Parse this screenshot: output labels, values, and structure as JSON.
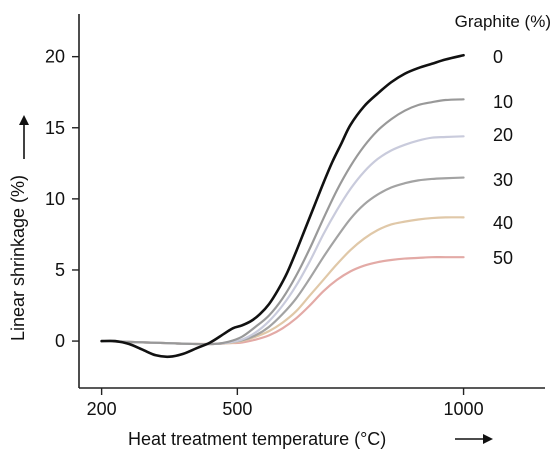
{
  "chart_data": {
    "type": "line",
    "xlabel": "Heat treatment temperature (°C)",
    "ylabel": "Linear shrinkage (%)",
    "xlim": [
      150,
      1180
    ],
    "ylim": [
      -3.3,
      23
    ],
    "xticks": [
      200,
      500,
      1000
    ],
    "yticks": [
      0,
      5,
      10,
      15,
      20
    ],
    "grid": false,
    "legend_title": "Graphite (%)",
    "legend_position": "right, next to line ends",
    "series": [
      {
        "name": "0",
        "color": "#111111",
        "x": [
          200,
          230,
          260,
          290,
          320,
          350,
          380,
          410,
          440,
          470,
          490,
          510,
          530,
          550,
          570,
          590,
          610,
          630,
          650,
          670,
          690,
          710,
          730,
          750,
          780,
          810,
          840,
          870,
          900,
          930,
          960,
          1000
        ],
        "y": [
          0,
          0,
          -0.2,
          -0.6,
          -1.0,
          -1.1,
          -0.9,
          -0.5,
          -0.1,
          0.5,
          0.9,
          1.1,
          1.4,
          1.9,
          2.6,
          3.6,
          4.8,
          6.3,
          7.9,
          9.5,
          11.1,
          12.6,
          13.9,
          15.2,
          16.5,
          17.4,
          18.2,
          18.8,
          19.2,
          19.5,
          19.8,
          20.1
        ]
      },
      {
        "name": "10",
        "color": "#999999",
        "x": [
          200,
          250,
          300,
          350,
          400,
          450,
          480,
          510,
          540,
          570,
          600,
          630,
          660,
          690,
          720,
          750,
          780,
          810,
          840,
          870,
          900,
          930,
          960,
          1000
        ],
        "y": [
          0,
          -0.05,
          -0.1,
          -0.15,
          -0.2,
          -0.2,
          -0.05,
          0.3,
          1.0,
          1.8,
          3.0,
          4.6,
          6.5,
          8.6,
          10.6,
          12.3,
          13.7,
          14.8,
          15.6,
          16.2,
          16.6,
          16.8,
          16.95,
          17.0
        ]
      },
      {
        "name": "20",
        "color": "#c9cbdc",
        "x": [
          200,
          250,
          300,
          350,
          400,
          450,
          480,
          510,
          540,
          570,
          600,
          630,
          660,
          690,
          720,
          750,
          780,
          810,
          840,
          870,
          900,
          930,
          960,
          1000
        ],
        "y": [
          0,
          -0.05,
          -0.1,
          -0.15,
          -0.2,
          -0.2,
          -0.1,
          0.1,
          0.6,
          1.4,
          2.5,
          3.9,
          5.6,
          7.5,
          9.2,
          10.7,
          11.9,
          12.8,
          13.4,
          13.8,
          14.1,
          14.3,
          14.35,
          14.4
        ]
      },
      {
        "name": "30",
        "color": "#a3a3a3",
        "x": [
          200,
          250,
          300,
          350,
          400,
          450,
          480,
          510,
          540,
          570,
          600,
          630,
          660,
          690,
          720,
          750,
          780,
          810,
          840,
          870,
          900,
          930,
          960,
          1000
        ],
        "y": [
          0,
          -0.05,
          -0.1,
          -0.15,
          -0.2,
          -0.2,
          -0.1,
          0.05,
          0.4,
          1.0,
          1.9,
          3.0,
          4.4,
          5.9,
          7.3,
          8.6,
          9.6,
          10.3,
          10.8,
          11.1,
          11.3,
          11.4,
          11.45,
          11.5
        ]
      },
      {
        "name": "40",
        "color": "#e0c8a8",
        "x": [
          200,
          250,
          300,
          350,
          400,
          450,
          480,
          510,
          540,
          570,
          600,
          630,
          660,
          690,
          720,
          750,
          780,
          810,
          840,
          870,
          900,
          930,
          960,
          1000
        ],
        "y": [
          0,
          -0.05,
          -0.1,
          -0.15,
          -0.2,
          -0.2,
          -0.15,
          0.0,
          0.3,
          0.7,
          1.3,
          2.1,
          3.2,
          4.3,
          5.4,
          6.4,
          7.2,
          7.8,
          8.2,
          8.4,
          8.55,
          8.65,
          8.7,
          8.7
        ]
      },
      {
        "name": "50",
        "color": "#e3aaa6",
        "x": [
          200,
          250,
          300,
          350,
          400,
          450,
          480,
          510,
          540,
          570,
          600,
          630,
          660,
          690,
          720,
          750,
          780,
          810,
          840,
          870,
          900,
          930,
          960,
          1000
        ],
        "y": [
          0,
          -0.05,
          -0.1,
          -0.15,
          -0.2,
          -0.2,
          -0.15,
          -0.1,
          0.1,
          0.4,
          0.9,
          1.6,
          2.5,
          3.5,
          4.3,
          4.9,
          5.3,
          5.55,
          5.7,
          5.8,
          5.85,
          5.9,
          5.9,
          5.9
        ]
      }
    ]
  }
}
